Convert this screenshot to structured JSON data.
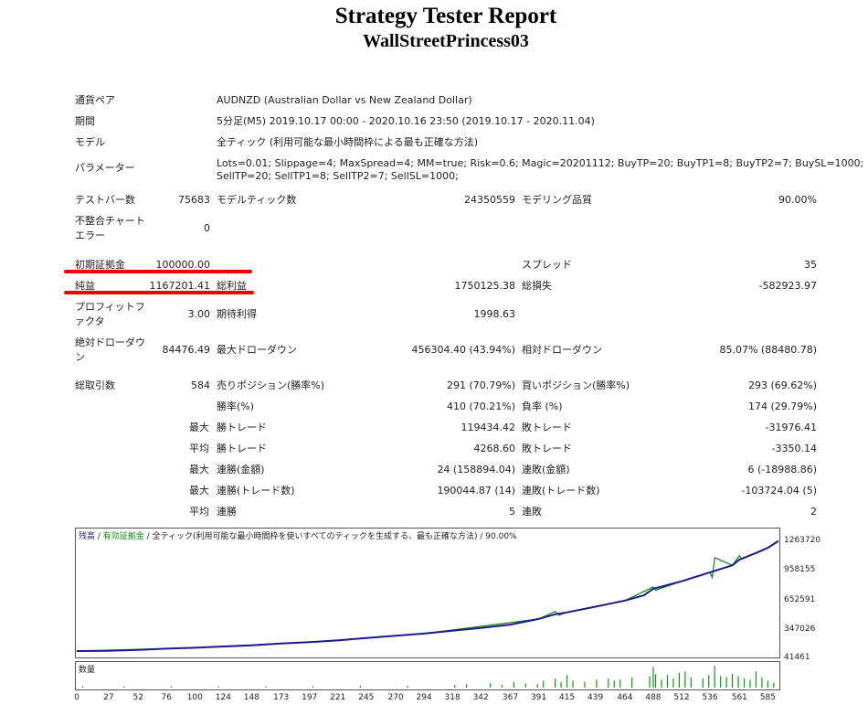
{
  "header": {
    "title": "Strategy Tester Report",
    "subtitle": "WallStreetPrincess03"
  },
  "info": {
    "pair_label": "通貨ペア",
    "pair_value": "AUDNZD (Australian Dollar vs New Zealand Dollar)",
    "period_label": "期間",
    "period_value": "5分足(M5) 2019.10.17 00:00 - 2020.10.16 23:50 (2019.10.17 - 2020.11.04)",
    "model_label": "モデル",
    "model_value": "全ティック (利用可能な最小時間枠による最も正確な方法)",
    "params_label": "パラメーター",
    "params_line1": "Lots=0.01; Slippage=4; MaxSpread=4; MM=true; Risk=0.6; Magic=20201112; BuyTP=20; BuyTP1=8; BuyTP2=7; BuySL=1000;",
    "params_line2": "SellTP=20; SellTP1=8; SellTP2=7; SellSL=1000;"
  },
  "stats": {
    "bars_label": "テストバー数",
    "bars_value": "75683",
    "ticks_label": "モデルティック数",
    "ticks_value": "24350559",
    "quality_label": "モデリング品質",
    "quality_value": "90.00%",
    "mismatch_label": "不整合チャートエラー",
    "mismatch_value": "0",
    "deposit_label": "初期証拠金",
    "deposit_value": "100000.00",
    "spread_label": "スプレッド",
    "spread_value": "35",
    "net_label": "純益",
    "net_value": "1167201.41",
    "gross_profit_label": "総利益",
    "gross_profit_value": "1750125.38",
    "gross_loss_label": "総損失",
    "gross_loss_value": "-582923.97",
    "pf_label": "プロフィットファクタ",
    "pf_value": "3.00",
    "expected_label": "期待利得",
    "expected_value": "1998.63",
    "abs_dd_label": "絶対ドローダウン",
    "abs_dd_value": "84476.49",
    "max_dd_label": "最大ドローダウン",
    "max_dd_value": "456304.40 (43.94%)",
    "rel_dd_label": "相対ドローダウン",
    "rel_dd_value": "85.07% (88480.78)",
    "total_trades_label": "総取引数",
    "total_trades_value": "584",
    "short_label": "売りポジション(勝率%)",
    "short_value": "291 (70.79%)",
    "long_label": "買いポジション(勝率%)",
    "long_value": "293 (69.62%)",
    "win_rate_label": "勝率(%)",
    "win_rate_value": "410 (70.21%)",
    "loss_rate_label": "負率 (%)",
    "loss_rate_value": "174 (29.79%)",
    "max_word": "最大",
    "avg_word": "平均",
    "largest_win_label": "勝トレード",
    "largest_win_value": "119434.42",
    "largest_loss_label": "敗トレード",
    "largest_loss_value": "-31976.41",
    "avg_win_label": "勝トレード",
    "avg_win_value": "4268.60",
    "avg_loss_label": "敗トレード",
    "avg_loss_value": "-3350.14",
    "max_consec_wins_label": "連勝(金額)",
    "max_consec_wins_value": "24 (158894.04)",
    "max_consec_losses_label": "連敗(金額)",
    "max_consec_losses_value": "6 (-18988.86)",
    "max_consec_profit_label": "連勝(トレード数)",
    "max_consec_profit_value": "190044.87 (14)",
    "max_consec_loss_label": "連敗(トレード数)",
    "max_consec_loss_value": "-103724.04 (5)",
    "avg_consec_wins_label": "連勝",
    "avg_consec_wins_value": "5",
    "avg_consec_losses_label": "連敗",
    "avg_consec_losses_value": "2"
  },
  "legend": {
    "balance": "残高",
    "sep": " / ",
    "equity": "有効証拠金",
    "model": "全ティック(利用可能な最小時間枠を使いすべてのティックを生成する、最も正確な方法)",
    "quality": "90.00%"
  },
  "volume_label": "数量",
  "highlight_color": "#ee0000",
  "chart_data": {
    "type": "line",
    "ylim": [
      41461,
      1263720
    ],
    "xlim": [
      0,
      594
    ],
    "yticks": [
      "1263720",
      "958155",
      "652591",
      "347026",
      "41461"
    ],
    "xticks": [
      "0",
      "27",
      "52",
      "76",
      "100",
      "124",
      "148",
      "173",
      "197",
      "221",
      "245",
      "270",
      "294",
      "318",
      "342",
      "367",
      "391",
      "415",
      "439",
      "464",
      "488",
      "512",
      "536",
      "561",
      "585"
    ],
    "series": [
      {
        "name": "残高",
        "color": "#1a1a8c",
        "x": [
          0,
          27,
          52,
          76,
          100,
          124,
          148,
          173,
          197,
          221,
          245,
          270,
          294,
          318,
          342,
          367,
          391,
          405,
          415,
          439,
          464,
          480,
          488,
          512,
          536,
          555,
          561,
          575,
          585,
          594
        ],
        "y": [
          100000,
          103000,
          112000,
          125000,
          135000,
          148000,
          160000,
          180000,
          195000,
          212000,
          238000,
          262000,
          285000,
          315000,
          345000,
          380000,
          440000,
          490000,
          510000,
          570000,
          635000,
          690000,
          760000,
          840000,
          935000,
          1010000,
          1070000,
          1140000,
          1195000,
          1267201
        ]
      },
      {
        "name": "有効証拠金",
        "color": "#0a8a0a",
        "x": [
          0,
          100,
          197,
          294,
          391,
          405,
          408,
          415,
          464,
          488,
          490,
          512,
          536,
          538,
          540,
          555,
          561,
          563,
          585,
          594
        ],
        "y": [
          100000,
          135000,
          195000,
          285000,
          440000,
          520000,
          480000,
          510000,
          635000,
          780000,
          745000,
          840000,
          935000,
          880000,
          1090000,
          1010000,
          1110000,
          1075000,
          1195000,
          1267201
        ]
      }
    ],
    "volume": {
      "x": [
        5,
        40,
        80,
        120,
        160,
        200,
        240,
        280,
        320,
        330,
        350,
        360,
        370,
        380,
        390,
        395,
        405,
        410,
        415,
        420,
        430,
        440,
        450,
        455,
        460,
        470,
        485,
        488,
        490,
        495,
        500,
        505,
        510,
        515,
        520,
        530,
        535,
        540,
        545,
        550,
        555,
        560,
        565,
        570,
        575,
        580,
        585,
        590
      ],
      "v": [
        0.06,
        0.06,
        0.06,
        0.06,
        0.06,
        0.06,
        0.08,
        0.08,
        0.12,
        0.15,
        0.2,
        0.12,
        0.25,
        0.18,
        0.15,
        0.3,
        0.4,
        0.25,
        0.55,
        0.3,
        0.25,
        0.35,
        0.4,
        0.3,
        0.35,
        0.45,
        0.5,
        0.9,
        0.6,
        0.35,
        0.55,
        0.4,
        0.65,
        0.7,
        0.45,
        0.4,
        0.55,
        0.95,
        0.5,
        0.45,
        0.6,
        0.5,
        0.4,
        0.35,
        0.7,
        0.45,
        0.3,
        0.2
      ]
    }
  }
}
